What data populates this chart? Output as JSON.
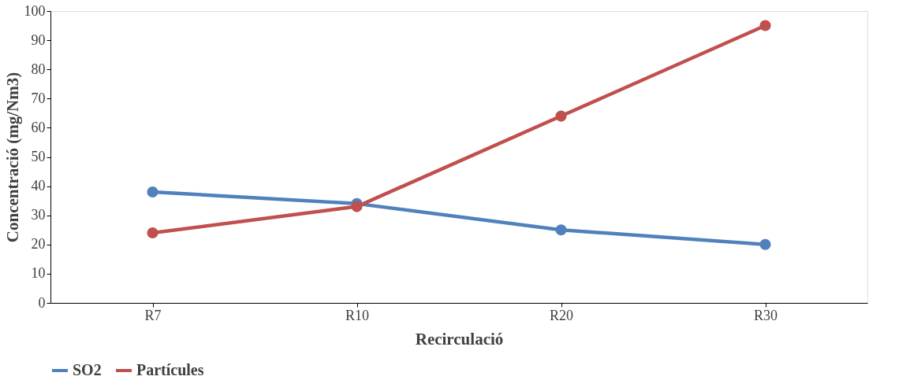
{
  "chart_data": {
    "type": "line",
    "xlabel": "Recirculació",
    "ylabel": "Concentració (mg/Nm3)",
    "categories": [
      "R7",
      "R10",
      "R20",
      "R30"
    ],
    "series": [
      {
        "name": "SO2",
        "color": "#4f81bd",
        "values": [
          38,
          34,
          25,
          20
        ]
      },
      {
        "name": "Partícules",
        "color": "#c0504d",
        "values": [
          24,
          33,
          64,
          95
        ]
      }
    ],
    "ylim": [
      0,
      100
    ],
    "yticks": [
      0,
      10,
      20,
      30,
      40,
      50,
      60,
      70,
      80,
      90,
      100
    ],
    "grid": false,
    "legend": "bottom",
    "marker": "circle",
    "line_style": "solid"
  }
}
